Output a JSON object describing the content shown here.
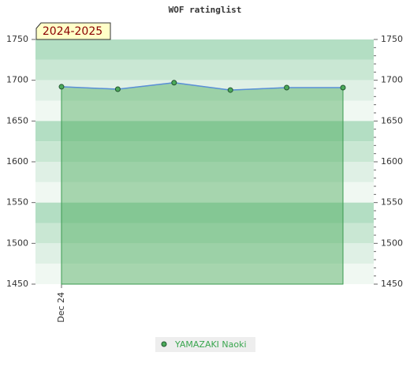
{
  "chart_data": {
    "type": "area-line",
    "title": "WOF ratinglist",
    "annotation": "2024-2025",
    "categories": [
      "Dec 24",
      null,
      null,
      null,
      null,
      null
    ],
    "series": [
      {
        "name": "YAMAZAKI Naoki",
        "color": "#4caa5a",
        "values": [
          1692,
          1689,
          1697,
          1688,
          1691,
          1691
        ]
      }
    ],
    "ylim": [
      1450,
      1750
    ],
    "yticks": [
      1450,
      1500,
      1550,
      1600,
      1650,
      1700,
      1750
    ],
    "y2lim": [
      1450,
      1750
    ],
    "y2ticks": [
      1450,
      1500,
      1550,
      1600,
      1650,
      1700,
      1750
    ]
  }
}
